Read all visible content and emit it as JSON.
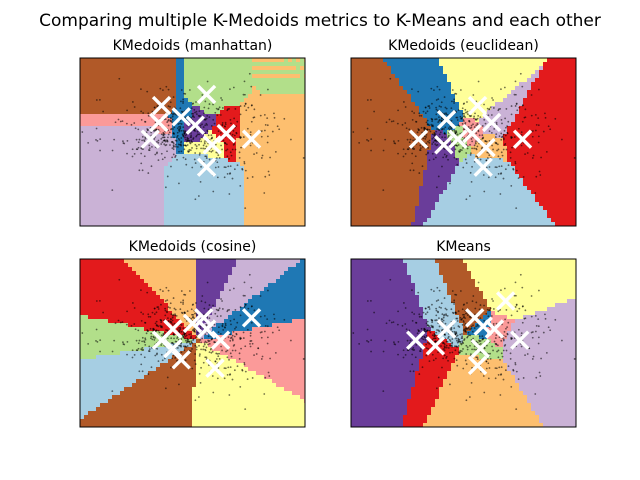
{
  "figure": {
    "title": "Comparing multiple K-Medoids metrics to K-Means and each other"
  },
  "chart_data": [
    {
      "type": "scatter",
      "title": "KMedoids (manhattan)",
      "xlabel": "",
      "ylabel": "",
      "xticks": false,
      "yticks": false,
      "region_colors": [
        "#b15928",
        "#b2df8a",
        "#fdbf6f",
        "#cab2d6",
        "#1f78b4",
        "#fb9a99",
        "#6a3d9a",
        "#ffff99",
        "#a6cee3",
        "#e31a1c"
      ],
      "centers": {
        "x": [
          -0.55,
          0.25,
          1.05,
          -0.75,
          -0.2,
          -0.6,
          0.05,
          0.35,
          0.25,
          0.6
        ],
        "y": [
          0.65,
          0.85,
          0.05,
          0.05,
          0.45,
          0.35,
          0.3,
          -0.05,
          -0.45,
          0.15
        ]
      },
      "center_marker": "x",
      "center_color": "#ffffff"
    },
    {
      "type": "scatter",
      "title": "KMedoids (euclidean)",
      "xlabel": "",
      "ylabel": "",
      "xticks": false,
      "yticks": false,
      "region_colors": [
        "#1f78b4",
        "#ffff99",
        "#cab2d6",
        "#b15928",
        "#6a3d9a",
        "#b2df8a",
        "#fb9a99",
        "#fdbf6f",
        "#a6cee3",
        "#e31a1c"
      ],
      "centers": {
        "x": [
          -0.3,
          0.25,
          0.5,
          -0.8,
          -0.35,
          -0.1,
          0.15,
          0.4,
          0.35,
          1.05
        ],
        "y": [
          0.4,
          0.65,
          0.35,
          0.05,
          -0.05,
          0.05,
          0.15,
          -0.1,
          -0.45,
          0.05
        ]
      },
      "center_marker": "x",
      "center_color": "#ffffff"
    },
    {
      "type": "scatter",
      "title": "KMedoids (cosine)",
      "xlabel": "",
      "ylabel": "",
      "xticks": false,
      "yticks": false,
      "region_colors": [
        "#e31a1c",
        "#fdbf6f",
        "#6a3d9a",
        "#cab2d6",
        "#fb9a99",
        "#1f78b4",
        "#b2df8a",
        "#a6cee3",
        "#b15928",
        "#ffff99"
      ],
      "centers": {
        "x": [
          -0.35,
          0.0,
          0.2,
          0.25,
          0.5,
          1.05,
          -0.55,
          -0.35,
          -0.2,
          0.4
        ],
        "y": [
          0.25,
          0.35,
          0.45,
          0.25,
          0.05,
          0.45,
          0.05,
          -0.1,
          -0.3,
          -0.45
        ]
      },
      "center_marker": "x",
      "center_color": "#ffffff"
    },
    {
      "type": "scatter",
      "title": "KMeans",
      "xlabel": "",
      "ylabel": "",
      "xticks": false,
      "yticks": false,
      "region_colors": [
        "#a6cee3",
        "#b15928",
        "#ffff99",
        "#6a3d9a",
        "#e31a1c",
        "#1f78b4",
        "#fb9a99",
        "#b2df8a",
        "#cab2d6",
        "#fdbf6f"
      ],
      "centers": {
        "x": [
          -0.3,
          0.2,
          0.75,
          -0.85,
          -0.5,
          0.35,
          0.55,
          0.3,
          1.0,
          0.25
        ],
        "y": [
          0.25,
          0.45,
          0.75,
          0.05,
          -0.05,
          0.3,
          0.25,
          -0.1,
          0.05,
          -0.4
        ]
      },
      "center_marker": "x",
      "center_color": "#ffffff"
    }
  ]
}
